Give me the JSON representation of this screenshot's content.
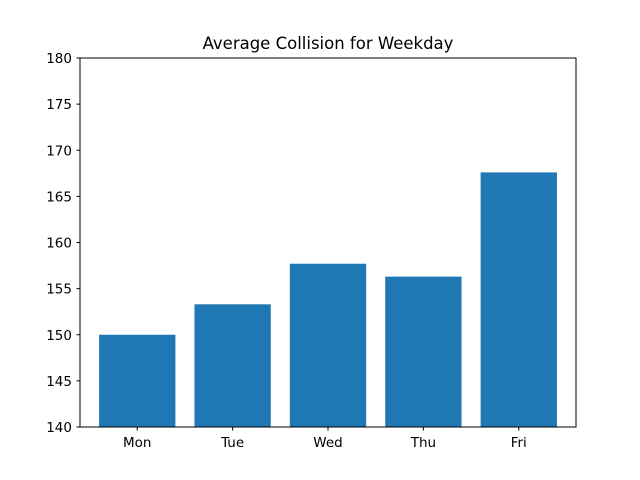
{
  "chart_data": {
    "type": "bar",
    "title": "Average Collision for Weekday",
    "xlabel": "",
    "ylabel": "",
    "categories": [
      "Mon",
      "Tue",
      "Wed",
      "Thu",
      "Fri"
    ],
    "values": [
      150.0,
      153.3,
      157.7,
      156.3,
      167.6
    ],
    "ylim": [
      140,
      180
    ],
    "yticks": [
      "140",
      "145",
      "150",
      "155",
      "160",
      "165",
      "170",
      "175",
      "180"
    ],
    "bar_color": "#1f77b4",
    "grid": false,
    "legend": "none"
  }
}
